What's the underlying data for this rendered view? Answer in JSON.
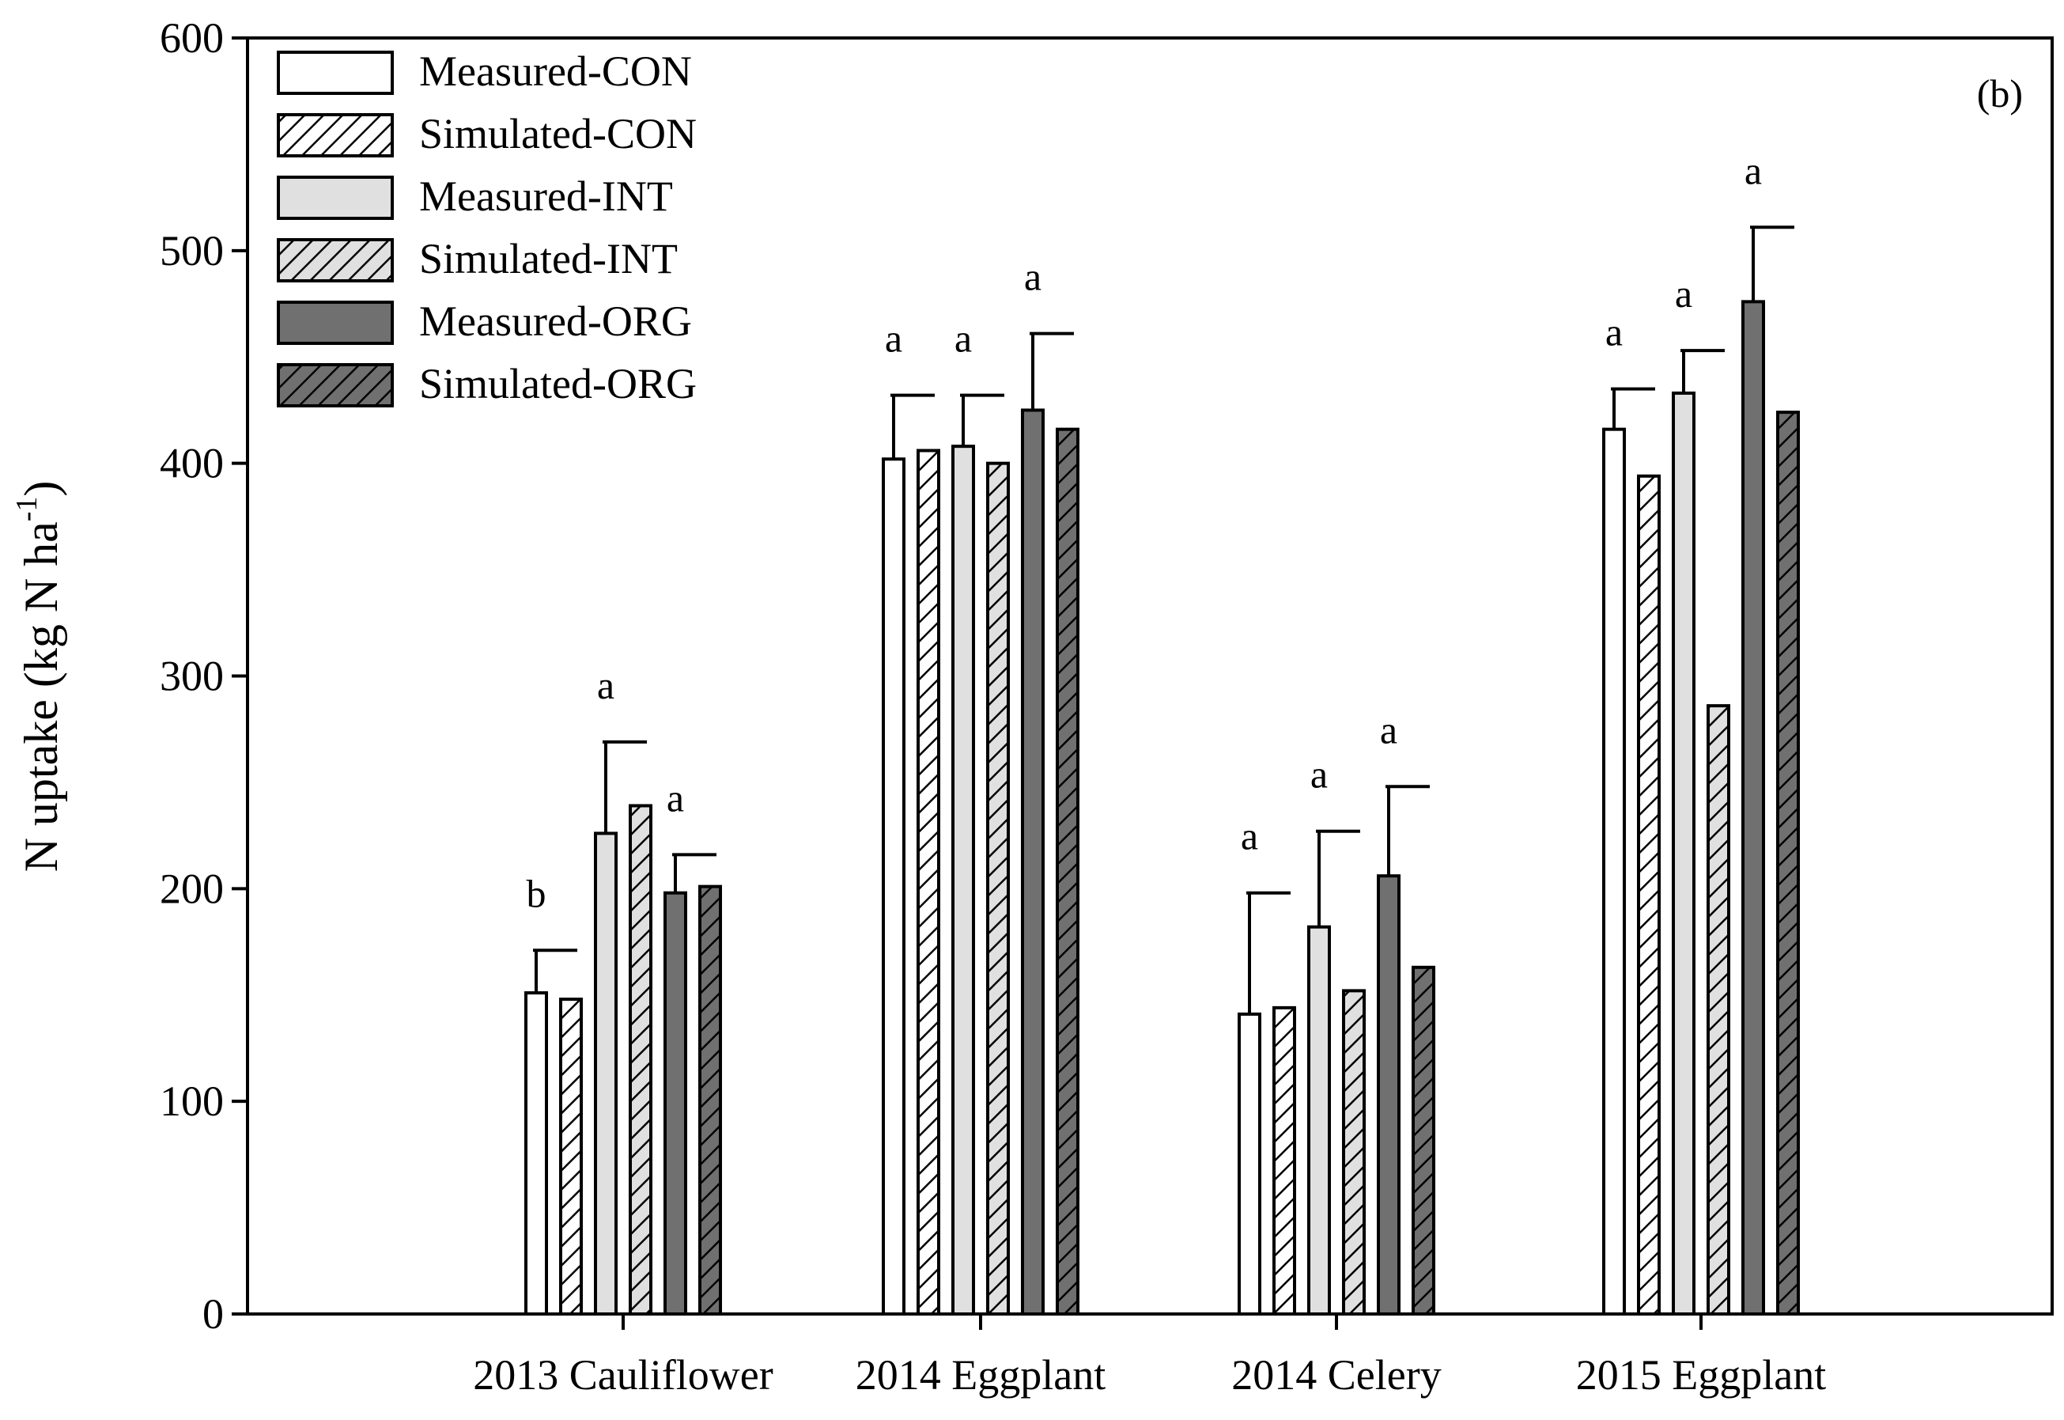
{
  "chart_data": {
    "type": "bar",
    "panel_label": "(b)",
    "ylabel": "N uptake (kg N ha",
    "ylabel_superscript": "-1",
    "ylabel_close": ")",
    "ylim": [
      0,
      600
    ],
    "yticks": [
      0,
      100,
      200,
      300,
      400,
      500,
      600
    ],
    "categories": [
      "2013 Cauliflower",
      "2014 Eggplant",
      "2014 Celery",
      "2015 Eggplant"
    ],
    "series": [
      {
        "name": "Measured-CON",
        "style": "measured",
        "fill": "#ffffff",
        "values": [
          151,
          402,
          141,
          416
        ],
        "errors": [
          20,
          30,
          57,
          19
        ],
        "letters": [
          "b",
          "a",
          "a",
          "a"
        ]
      },
      {
        "name": "Simulated-CON",
        "style": "simulated",
        "fill": "#ffffff",
        "values": [
          148,
          406,
          144,
          394
        ],
        "errors": null,
        "letters": null
      },
      {
        "name": "Measured-INT",
        "style": "measured",
        "fill": "#e0e0e0",
        "values": [
          226,
          408,
          182,
          433
        ],
        "errors": [
          43,
          24,
          45,
          20
        ],
        "letters": [
          "a",
          "a",
          "a",
          "a"
        ]
      },
      {
        "name": "Simulated-INT",
        "style": "simulated",
        "fill": "#e0e0e0",
        "values": [
          239,
          400,
          152,
          286
        ],
        "errors": null,
        "letters": null
      },
      {
        "name": "Measured-ORG",
        "style": "measured",
        "fill": "#707070",
        "values": [
          198,
          425,
          206,
          476
        ],
        "errors": [
          18,
          36,
          42,
          35
        ],
        "letters": [
          "a",
          "a",
          "a",
          "a"
        ]
      },
      {
        "name": "Simulated-ORG",
        "style": "simulated",
        "fill": "#707070",
        "values": [
          201,
          416,
          163,
          424
        ],
        "errors": null,
        "letters": null
      }
    ],
    "legend_position": "top-left",
    "grid": false
  }
}
